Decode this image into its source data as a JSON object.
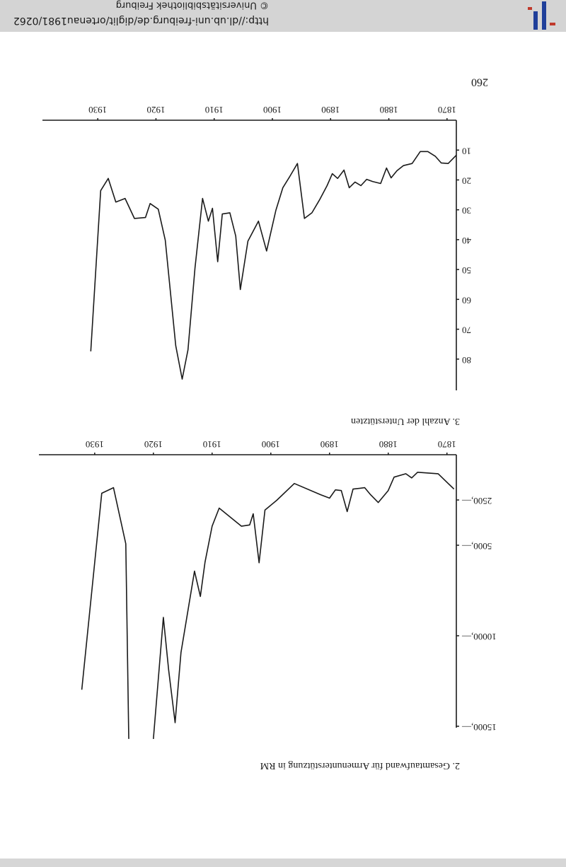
{
  "header": {
    "url": "http://dl.ub.uni-freiburg.de/diglit/ortenau1981/0262",
    "copyright": "© Universitätsbibliothek Freiburg"
  },
  "page_number": "260",
  "chart_data": [
    {
      "type": "line",
      "title": "2. Gesamtaufwand für Armenunterstützung in RM",
      "color": "#1a1a1a",
      "x": [
        1868.8,
        1871.5,
        1875,
        1876,
        1877,
        1879,
        1880,
        1881.7,
        1883,
        1884,
        1886,
        1887,
        1888,
        1889,
        1890,
        1891.5,
        1896,
        1899,
        1901,
        1902,
        1903,
        1903.6,
        1905,
        1908.8,
        1910,
        1911.2,
        1912,
        1913,
        1915.3,
        1916.3,
        1917.4,
        1918.3,
        1920,
        1922,
        1924.2,
        1924.7,
        1926.8,
        1928.8,
        1932.2
      ],
      "values": [
        1900,
        1050,
        970,
        1280,
        1050,
        1240,
        1980,
        2640,
        2210,
        1820,
        1900,
        3140,
        1980,
        1940,
        2400,
        2210,
        1590,
        2520,
        3060,
        5970,
        3260,
        3880,
        3950,
        2950,
        3950,
        5930,
        7830,
        6430,
        10930,
        14800,
        11900,
        8990,
        15700,
        null,
        15700,
        4920,
        1820,
        2130,
        12980
      ],
      "xlim": [
        1868.4,
        1939.5
      ],
      "xticks": [
        1870,
        1880,
        1890,
        1900,
        1910,
        1920,
        1930
      ],
      "ylim": [
        0,
        15000
      ],
      "yticks": [
        {
          "value": 2500,
          "label": "2500,—"
        },
        {
          "value": 5000,
          "label": "5000,—"
        },
        {
          "value": 10000,
          "label": "10000,—"
        },
        {
          "value": 15000,
          "label": "15000,—"
        }
      ]
    },
    {
      "type": "line",
      "title": "3. Anzahl der Unterstützten",
      "color": "#1a1a1a",
      "x": [
        1868.4,
        1869.8,
        1871,
        1872,
        1873.3,
        1874.6,
        1876,
        1877.5,
        1878.6,
        1879.6,
        1880.4,
        1881.4,
        1882.8,
        1883.8,
        1884.8,
        1885.8,
        1886.8,
        1887.7,
        1888.8,
        1889.7,
        1890.6,
        1891.9,
        1893.2,
        1894.5,
        1895.7,
        1897,
        1898.2,
        1899.4,
        1901,
        1902.4,
        1904.2,
        1905.5,
        1906.3,
        1907.3,
        1908.6,
        1909.4,
        1910.3,
        1911,
        1912,
        1913.3,
        1914.5,
        1915.5,
        1916.6,
        1918.4,
        1919.6,
        1921,
        1921.8,
        1923.7,
        1925.3,
        1926.9,
        1928.2,
        1929.5,
        1931.2
      ],
      "values": [
        11.7,
        14.5,
        14.3,
        12.1,
        10.5,
        10.5,
        14.5,
        15.2,
        16.9,
        19.3,
        16,
        21.2,
        20.5,
        19.8,
        21.9,
        20.7,
        22.6,
        16.7,
        19.5,
        17.9,
        21.9,
        26.7,
        31,
        32.9,
        14.5,
        18.8,
        22.6,
        30.2,
        43.8,
        33.8,
        40.5,
        56.7,
        38.8,
        31,
        31.4,
        47.4,
        29.5,
        33.8,
        26.2,
        49.5,
        76.9,
        86.7,
        75.5,
        40.2,
        29.8,
        27.9,
        32.6,
        32.9,
        26.2,
        27.4,
        19.5,
        23.6,
        77.4
      ],
      "xlim": [
        1868.4,
        1939.5
      ],
      "xticks": [
        1870,
        1880,
        1890,
        1900,
        1910,
        1920,
        1930
      ],
      "ylim": [
        0,
        90
      ],
      "yticks": [
        10,
        20,
        30,
        40,
        50,
        60,
        70,
        80
      ]
    }
  ]
}
